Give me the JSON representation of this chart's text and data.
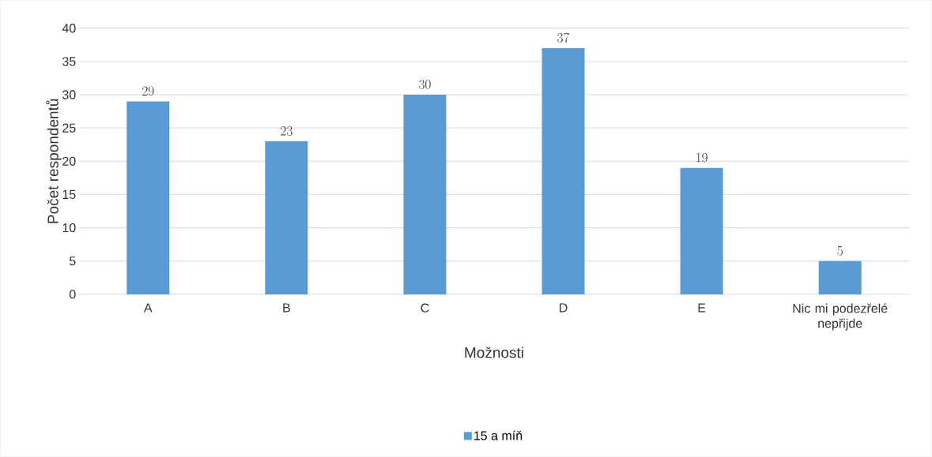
{
  "chart_data": {
    "type": "bar",
    "xlabel": "Možnosti",
    "ylabel": "Počet respondentů",
    "categories": [
      "A",
      "B",
      "C",
      "D",
      "E",
      "Nic mi podezřelé nepřijde"
    ],
    "series": [
      {
        "name": "15 a míň",
        "color": "#5b9bd5",
        "values": [
          29,
          23,
          30,
          37,
          19,
          5
        ]
      }
    ],
    "ylim": [
      0,
      40
    ],
    "yticks": [
      0,
      5,
      10,
      15,
      20,
      25,
      30,
      35,
      40
    ],
    "grid": "y",
    "legend": "bottom",
    "data_labels": true
  }
}
